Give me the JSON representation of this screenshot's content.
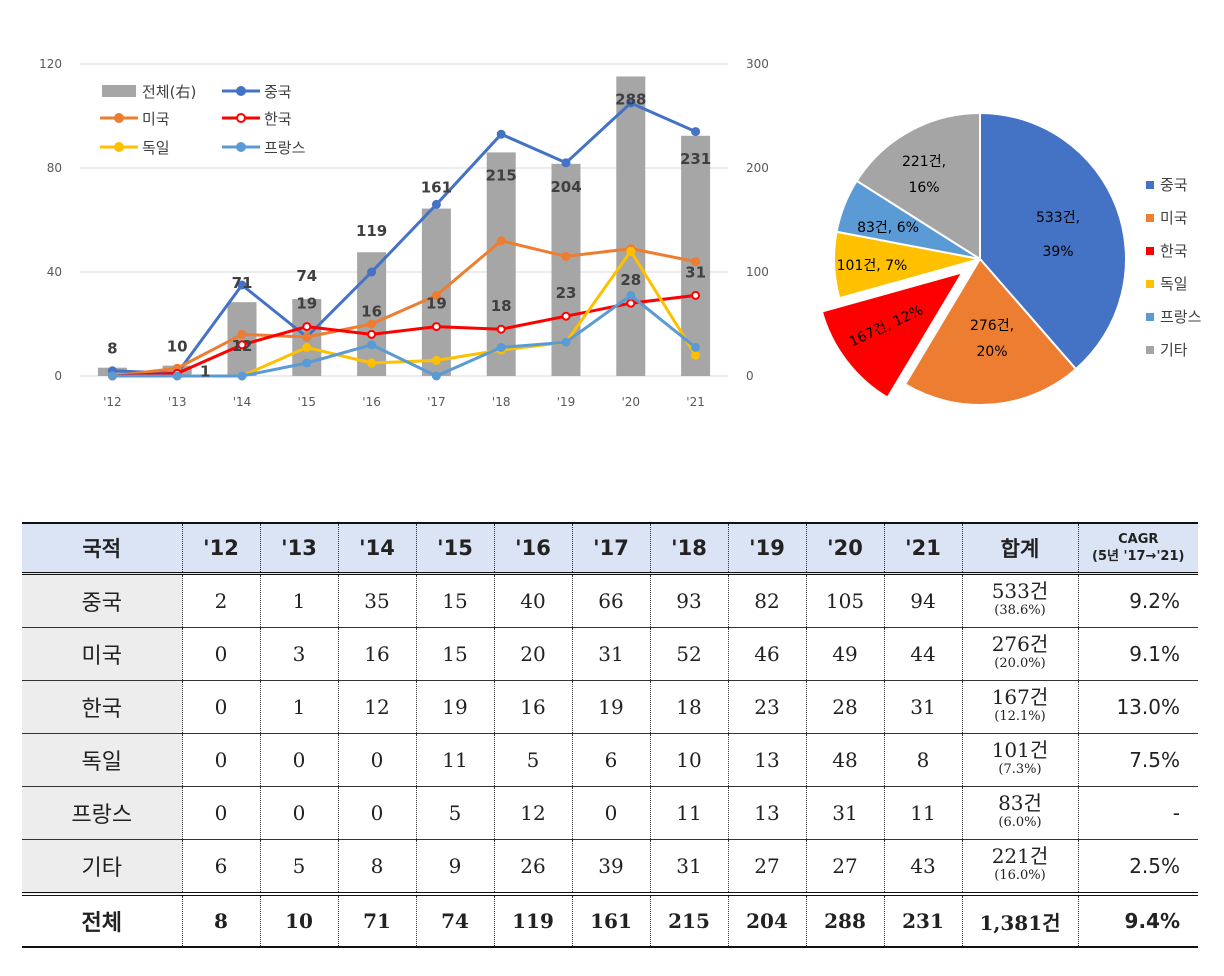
{
  "chart_data": [
    {
      "type": "bar+line",
      "categories": [
        "'12",
        "'13",
        "'14",
        "'15",
        "'16",
        "'17",
        "'18",
        "'19",
        "'20",
        "'21"
      ],
      "ylim_left": [
        0,
        120
      ],
      "ylim_right": [
        0,
        300
      ],
      "yticks_left": [
        "0",
        "40",
        "80",
        "120"
      ],
      "yticks_right": [
        "0",
        "100",
        "200",
        "300"
      ],
      "bar_series": {
        "name": "전체(右)",
        "color": "#a6a6a6",
        "values": [
          8,
          10,
          71,
          74,
          119,
          161,
          215,
          204,
          288,
          231
        ]
      },
      "series": [
        {
          "name": "중국",
          "color": "#4472c4",
          "marker": "filled",
          "values": [
            2,
            1,
            35,
            15,
            40,
            66,
            93,
            82,
            105,
            94
          ]
        },
        {
          "name": "미국",
          "color": "#ed7d31",
          "marker": "filled",
          "values": [
            0,
            3,
            16,
            15,
            20,
            31,
            52,
            46,
            49,
            44
          ]
        },
        {
          "name": "한국",
          "color": "#ff0000",
          "marker": "hollow",
          "values": [
            0,
            1,
            12,
            19,
            16,
            19,
            18,
            23,
            28,
            31
          ]
        },
        {
          "name": "독일",
          "color": "#ffc000",
          "marker": "filled",
          "values": [
            0,
            0,
            0,
            11,
            5,
            6,
            10,
            13,
            48,
            8
          ]
        },
        {
          "name": "프랑스",
          "color": "#5b9bd5",
          "marker": "filled",
          "values": [
            0,
            0,
            0,
            5,
            12,
            0,
            11,
            13,
            31,
            11
          ]
        }
      ],
      "bar_labels": [
        "8",
        "10",
        "71",
        "74",
        "119",
        "161",
        "215",
        "204",
        "288",
        "231"
      ],
      "korea_labels": [
        "",
        "1",
        "12",
        "19",
        "16",
        "19",
        "18",
        "23",
        "28",
        "31"
      ],
      "legend": "top-left"
    },
    {
      "type": "pie",
      "slices": [
        {
          "name": "중국",
          "count": "533건,",
          "pct": "39%",
          "value": 533,
          "color": "#4472c4"
        },
        {
          "name": "미국",
          "count": "276건,",
          "pct": "20%",
          "value": 276,
          "color": "#ed7d31"
        },
        {
          "name": "한국",
          "count": "167건, 12%",
          "pct": "",
          "value": 167,
          "color": "#ff0000",
          "explode": true
        },
        {
          "name": "독일",
          "count": "101건, 7%",
          "pct": "",
          "value": 101,
          "color": "#ffc000"
        },
        {
          "name": "프랑스",
          "count": "83건, 6%",
          "pct": "",
          "value": 83,
          "color": "#5b9bd5"
        },
        {
          "name": "기타",
          "count": "221건,",
          "pct": "16%",
          "value": 221,
          "color": "#a5a5a5"
        }
      ],
      "legend": "right"
    }
  ],
  "table": {
    "headers": [
      "국적",
      "'12",
      "'13",
      "'14",
      "'15",
      "'16",
      "'17",
      "'18",
      "'19",
      "'20",
      "'21",
      "합계"
    ],
    "cagr_header_1": "CAGR",
    "cagr_header_2": "(5년 '17→'21)",
    "rows": [
      {
        "label": "중국",
        "values": [
          "2",
          "1",
          "35",
          "15",
          "40",
          "66",
          "93",
          "82",
          "105",
          "94"
        ],
        "total": "533건",
        "share": "(38.6%)",
        "cagr": "9.2%"
      },
      {
        "label": "미국",
        "values": [
          "0",
          "3",
          "16",
          "15",
          "20",
          "31",
          "52",
          "46",
          "49",
          "44"
        ],
        "total": "276건",
        "share": "(20.0%)",
        "cagr": "9.1%"
      },
      {
        "label": "한국",
        "values": [
          "0",
          "1",
          "12",
          "19",
          "16",
          "19",
          "18",
          "23",
          "28",
          "31"
        ],
        "total": "167건",
        "share": "(12.1%)",
        "cagr": "13.0%"
      },
      {
        "label": "독일",
        "values": [
          "0",
          "0",
          "0",
          "11",
          "5",
          "6",
          "10",
          "13",
          "48",
          "8"
        ],
        "total": "101건",
        "share": "(7.3%)",
        "cagr": "7.5%"
      },
      {
        "label": "프랑스",
        "values": [
          "0",
          "0",
          "0",
          "5",
          "12",
          "0",
          "11",
          "13",
          "31",
          "11"
        ],
        "total": "83건",
        "share": "(6.0%)",
        "cagr": "-"
      },
      {
        "label": "기타",
        "values": [
          "6",
          "5",
          "8",
          "9",
          "26",
          "39",
          "31",
          "27",
          "27",
          "43"
        ],
        "total": "221건",
        "share": "(16.0%)",
        "cagr": "2.5%"
      }
    ],
    "footer": {
      "label": "전체",
      "values": [
        "8",
        "10",
        "71",
        "74",
        "119",
        "161",
        "215",
        "204",
        "288",
        "231"
      ],
      "total": "1,381건",
      "cagr": "9.4%"
    }
  }
}
